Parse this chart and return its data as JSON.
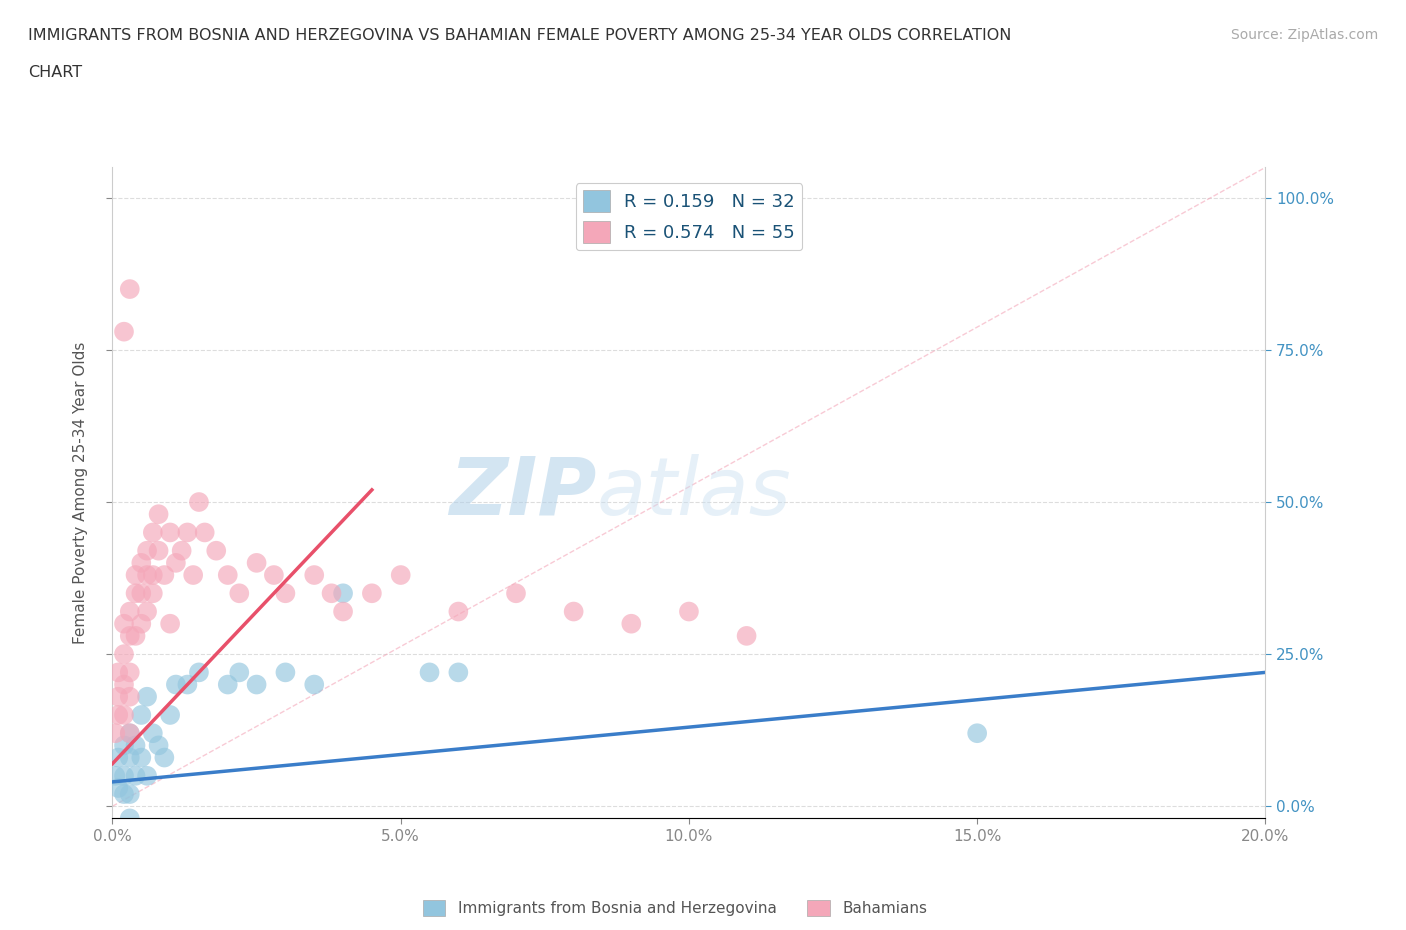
{
  "title_line1": "IMMIGRANTS FROM BOSNIA AND HERZEGOVINA VS BAHAMIAN FEMALE POVERTY AMONG 25-34 YEAR OLDS CORRELATION",
  "title_line2": "CHART",
  "source_text": "Source: ZipAtlas.com",
  "ylabel": "Female Poverty Among 25-34 Year Olds",
  "xlim": [
    0.0,
    0.2
  ],
  "ylim": [
    -0.02,
    1.05
  ],
  "yticks": [
    0.0,
    0.25,
    0.5,
    0.75,
    1.0
  ],
  "xticks": [
    0.0,
    0.05,
    0.1,
    0.15,
    0.2
  ],
  "ytick_labels": [
    "0.0%",
    "25.0%",
    "50.0%",
    "75.0%",
    "100.0%"
  ],
  "xtick_labels": [
    "0.0%",
    "5.0%",
    "10.0%",
    "15.0%",
    "20.0%"
  ],
  "blue_color": "#92C5DE",
  "pink_color": "#F4A7B9",
  "blue_line_color": "#3A7DC9",
  "pink_line_color": "#E8506A",
  "diagonal_color": "#F4A7B9",
  "R_blue": 0.159,
  "N_blue": 32,
  "R_pink": 0.574,
  "N_pink": 55,
  "legend_label_blue": "Immigrants from Bosnia and Herzegovina",
  "legend_label_pink": "Bahamians",
  "watermark_zip": "ZIP",
  "watermark_atlas": "atlas",
  "blue_scatter_x": [
    0.0005,
    0.001,
    0.001,
    0.002,
    0.002,
    0.002,
    0.003,
    0.003,
    0.003,
    0.004,
    0.004,
    0.005,
    0.005,
    0.006,
    0.006,
    0.007,
    0.008,
    0.009,
    0.01,
    0.011,
    0.013,
    0.015,
    0.02,
    0.022,
    0.025,
    0.03,
    0.035,
    0.04,
    0.055,
    0.06,
    0.15,
    0.003
  ],
  "blue_scatter_y": [
    0.05,
    0.03,
    0.08,
    0.1,
    0.05,
    0.02,
    0.08,
    0.12,
    0.02,
    0.05,
    0.1,
    0.08,
    0.15,
    0.18,
    0.05,
    0.12,
    0.1,
    0.08,
    0.15,
    0.2,
    0.2,
    0.22,
    0.2,
    0.22,
    0.2,
    0.22,
    0.2,
    0.35,
    0.22,
    0.22,
    0.12,
    -0.02
  ],
  "pink_scatter_x": [
    0.0005,
    0.001,
    0.001,
    0.001,
    0.002,
    0.002,
    0.002,
    0.002,
    0.003,
    0.003,
    0.003,
    0.003,
    0.003,
    0.004,
    0.004,
    0.004,
    0.005,
    0.005,
    0.005,
    0.006,
    0.006,
    0.006,
    0.007,
    0.007,
    0.007,
    0.008,
    0.008,
    0.009,
    0.01,
    0.01,
    0.011,
    0.012,
    0.013,
    0.014,
    0.015,
    0.016,
    0.018,
    0.02,
    0.022,
    0.025,
    0.028,
    0.03,
    0.035,
    0.038,
    0.04,
    0.045,
    0.05,
    0.06,
    0.07,
    0.08,
    0.09,
    0.1,
    0.11,
    0.002,
    0.003
  ],
  "pink_scatter_y": [
    0.12,
    0.15,
    0.18,
    0.22,
    0.2,
    0.25,
    0.3,
    0.15,
    0.18,
    0.22,
    0.28,
    0.32,
    0.12,
    0.35,
    0.38,
    0.28,
    0.4,
    0.3,
    0.35,
    0.32,
    0.38,
    0.42,
    0.38,
    0.45,
    0.35,
    0.42,
    0.48,
    0.38,
    0.45,
    0.3,
    0.4,
    0.42,
    0.45,
    0.38,
    0.5,
    0.45,
    0.42,
    0.38,
    0.35,
    0.4,
    0.38,
    0.35,
    0.38,
    0.35,
    0.32,
    0.35,
    0.38,
    0.32,
    0.35,
    0.32,
    0.3,
    0.32,
    0.28,
    0.78,
    0.85
  ],
  "blue_trend_x": [
    0.0,
    0.2
  ],
  "blue_trend_y": [
    0.04,
    0.22
  ],
  "pink_trend_x": [
    0.0,
    0.045
  ],
  "pink_trend_y": [
    0.07,
    0.52
  ]
}
